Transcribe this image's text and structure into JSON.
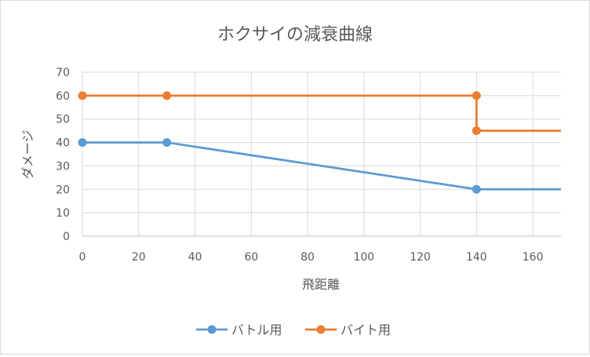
{
  "chart_data": {
    "type": "line",
    "title": "ホクサイの減衰曲線",
    "xlabel": "飛距離",
    "ylabel": "ダメージ",
    "xlim": [
      0,
      170
    ],
    "ylim": [
      0,
      70
    ],
    "x_ticks": [
      0,
      20,
      40,
      60,
      80,
      100,
      120,
      140,
      160
    ],
    "y_ticks": [
      0,
      10,
      20,
      30,
      40,
      50,
      60,
      70
    ],
    "grid": true,
    "legend_position": "bottom",
    "series": [
      {
        "name": "バトル用",
        "color": "#5b9bd5",
        "x": [
          0,
          30,
          140,
          170
        ],
        "y": [
          40,
          40,
          20,
          20
        ],
        "markers_at": [
          0,
          30,
          140
        ]
      },
      {
        "name": "バイト用",
        "color": "#ed7d31",
        "x": [
          0,
          30,
          140,
          140,
          170
        ],
        "y": [
          60,
          60,
          60,
          45,
          45
        ],
        "markers_at_index": [
          0,
          1,
          2,
          3
        ]
      }
    ]
  }
}
